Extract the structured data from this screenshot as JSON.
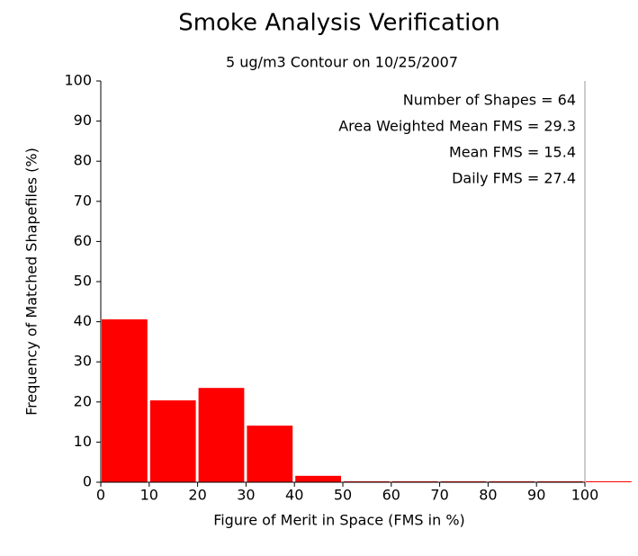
{
  "chart_data": {
    "type": "histogram",
    "title": "Smoke Analysis Verification",
    "subtitle": "5 ug/m3 Contour on 10/25/2007",
    "xlabel": "Figure of Merit in Space (FMS in %)",
    "ylabel": "Frequency of Matched Shapefiles (%)",
    "bins": [
      0,
      10,
      20,
      30,
      40,
      50,
      60,
      70,
      80,
      90,
      100,
      110
    ],
    "values": [
      40.6,
      20.4,
      23.5,
      14.1,
      1.6,
      0,
      0,
      0,
      0,
      0,
      0
    ],
    "color": "#ff0000",
    "xlim": [
      0,
      100
    ],
    "ylim": [
      0,
      100
    ],
    "xticks": [
      0,
      10,
      20,
      30,
      40,
      50,
      60,
      70,
      80,
      90,
      100
    ],
    "yticks": [
      0,
      10,
      20,
      30,
      40,
      50,
      60,
      70,
      80,
      90,
      100
    ],
    "annotations": [
      "Number of Shapes = 64",
      "Area Weighted Mean FMS = 29.3",
      "Mean FMS = 15.4",
      "Daily FMS = 27.4"
    ]
  }
}
